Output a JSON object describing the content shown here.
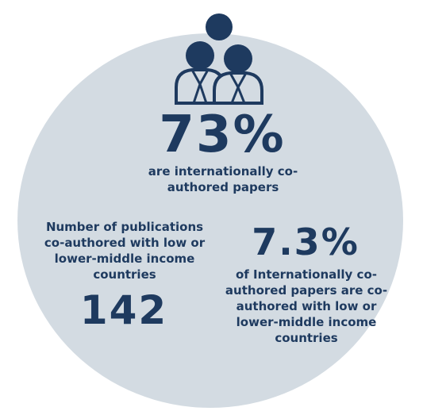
{
  "icon": "group-people-icon",
  "colors": {
    "primary": "#1e3a5f",
    "circle": "#d3dbe2",
    "background": "#ffffff"
  },
  "stat_main": {
    "value": "73%",
    "caption": "are internationally co-authored papers"
  },
  "stat_left": {
    "label": "Number of publications co-authored with low or lower-middle income countries",
    "value": "142"
  },
  "stat_right": {
    "value": "7.3%",
    "caption": "of Internationally co-authored papers are co-authored with low or lower-middle income countries"
  }
}
